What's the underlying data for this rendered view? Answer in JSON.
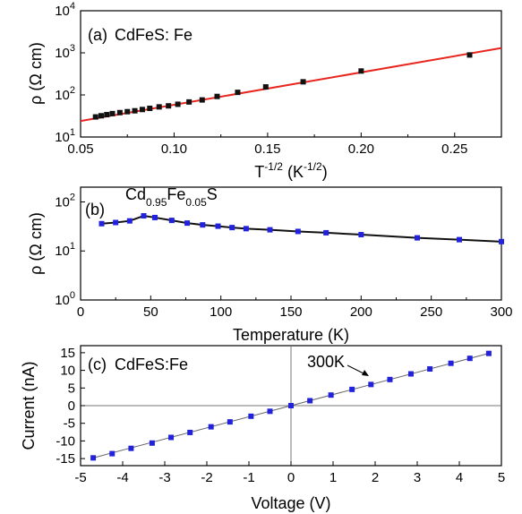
{
  "chart_data": [
    {
      "type": "scatter",
      "panel_label": "(a)",
      "annotation": "CdFeS: Fe",
      "xlabel": "T-1/2 (K-1/2)",
      "xlabel_parts": {
        "base": "T",
        "sup1": "-1/2",
        "mid": " (K",
        "sup2": "-1/2",
        "end": ")"
      },
      "ylabel": "ρ (Ω cm)",
      "xlim": [
        0.05,
        0.275
      ],
      "ylim": [
        10,
        10000
      ],
      "yscale": "log",
      "xticks": [
        "0.05",
        "0.10",
        "0.15",
        "0.20",
        "0.25"
      ],
      "xtick_values": [
        0.05,
        0.1,
        0.15,
        0.2,
        0.25
      ],
      "yticks": [
        "10^1",
        "10^2",
        "10^3",
        "10^4"
      ],
      "ytick_base": "10",
      "ytick_exps": [
        "1",
        "2",
        "3",
        "4"
      ],
      "ytick_values": [
        10,
        100,
        1000,
        10000
      ],
      "series": [
        {
          "color": "#111111",
          "marker": "square",
          "x": [
            0.058,
            0.061,
            0.064,
            0.067,
            0.071,
            0.075,
            0.079,
            0.083,
            0.087,
            0.092,
            0.097,
            0.102,
            0.108,
            0.115,
            0.123,
            0.134,
            0.149,
            0.169,
            0.2,
            0.258
          ],
          "y": [
            30,
            32,
            34,
            36,
            38,
            40,
            42,
            45,
            48,
            52,
            55,
            60,
            68,
            76,
            92,
            115,
            155,
            205,
            370,
            890
          ]
        }
      ],
      "fit": {
        "color": "#e8251e",
        "x": [
          0.05,
          0.275
        ],
        "y": [
          24,
          1300
        ]
      }
    },
    {
      "type": "line",
      "panel_label": "(b)",
      "annotation_parts": {
        "a": "Cd",
        "b": "0.95",
        "c": "Fe",
        "d": "0.05",
        "e": "S"
      },
      "xlabel": "Temperature (K)",
      "ylabel": "ρ (Ω cm)",
      "xlim": [
        0,
        300
      ],
      "ylim": [
        1,
        200
      ],
      "yscale": "log",
      "xticks": [
        "0",
        "50",
        "100",
        "150",
        "200",
        "250",
        "300"
      ],
      "xtick_values": [
        0,
        50,
        100,
        150,
        200,
        250,
        300
      ],
      "yticks": [
        "10^0",
        "10^1",
        "10^2"
      ],
      "ytick_base": "10",
      "ytick_exps": [
        "0",
        "1",
        "2"
      ],
      "ytick_values": [
        1,
        10,
        100
      ],
      "series": [
        {
          "color": "#2222dd",
          "line_color": "#111111",
          "marker": "square",
          "x": [
            15,
            25,
            35,
            45,
            53,
            65,
            76,
            87,
            98,
            108,
            118,
            135,
            155,
            175,
            200,
            240,
            270,
            300
          ],
          "y": [
            36,
            38,
            41,
            52,
            48,
            42,
            37,
            34,
            32,
            30,
            28.5,
            27,
            25,
            23.5,
            21.5,
            18.5,
            17,
            15.5
          ]
        }
      ]
    },
    {
      "type": "scatter",
      "panel_label": "(c)",
      "annotation": "CdFeS:Fe",
      "callout": "300K",
      "xlabel": "Voltage (V)",
      "ylabel": "Current (nA)",
      "xlim": [
        -5,
        5
      ],
      "ylim": [
        -17,
        17
      ],
      "xticks": [
        "-5",
        "-4",
        "-3",
        "-2",
        "-1",
        "0",
        "1",
        "2",
        "3",
        "4",
        "5"
      ],
      "xtick_values": [
        -5,
        -4,
        -3,
        -2,
        -1,
        0,
        1,
        2,
        3,
        4,
        5
      ],
      "yticks": [
        "15",
        "10",
        "5",
        "0",
        "-5",
        "-10",
        "-15"
      ],
      "ytick_values": [
        15,
        10,
        5,
        0,
        -5,
        -10,
        -15
      ],
      "series": [
        {
          "color": "#2222dd",
          "marker": "square",
          "fit_color": "#666666",
          "x": [
            -4.7,
            -4.25,
            -3.8,
            -3.3,
            -2.85,
            -2.4,
            -1.9,
            -1.45,
            -0.95,
            -0.5,
            0,
            0.45,
            0.95,
            1.45,
            1.9,
            2.35,
            2.85,
            3.3,
            3.8,
            4.25,
            4.7
          ],
          "y": [
            -14.8,
            -13.6,
            -12.1,
            -10.6,
            -9.0,
            -7.6,
            -6.0,
            -4.6,
            -3.0,
            -1.6,
            0.0,
            1.4,
            3.0,
            4.6,
            6.0,
            7.4,
            9.0,
            10.4,
            12.0,
            13.4,
            14.8
          ]
        }
      ]
    }
  ]
}
